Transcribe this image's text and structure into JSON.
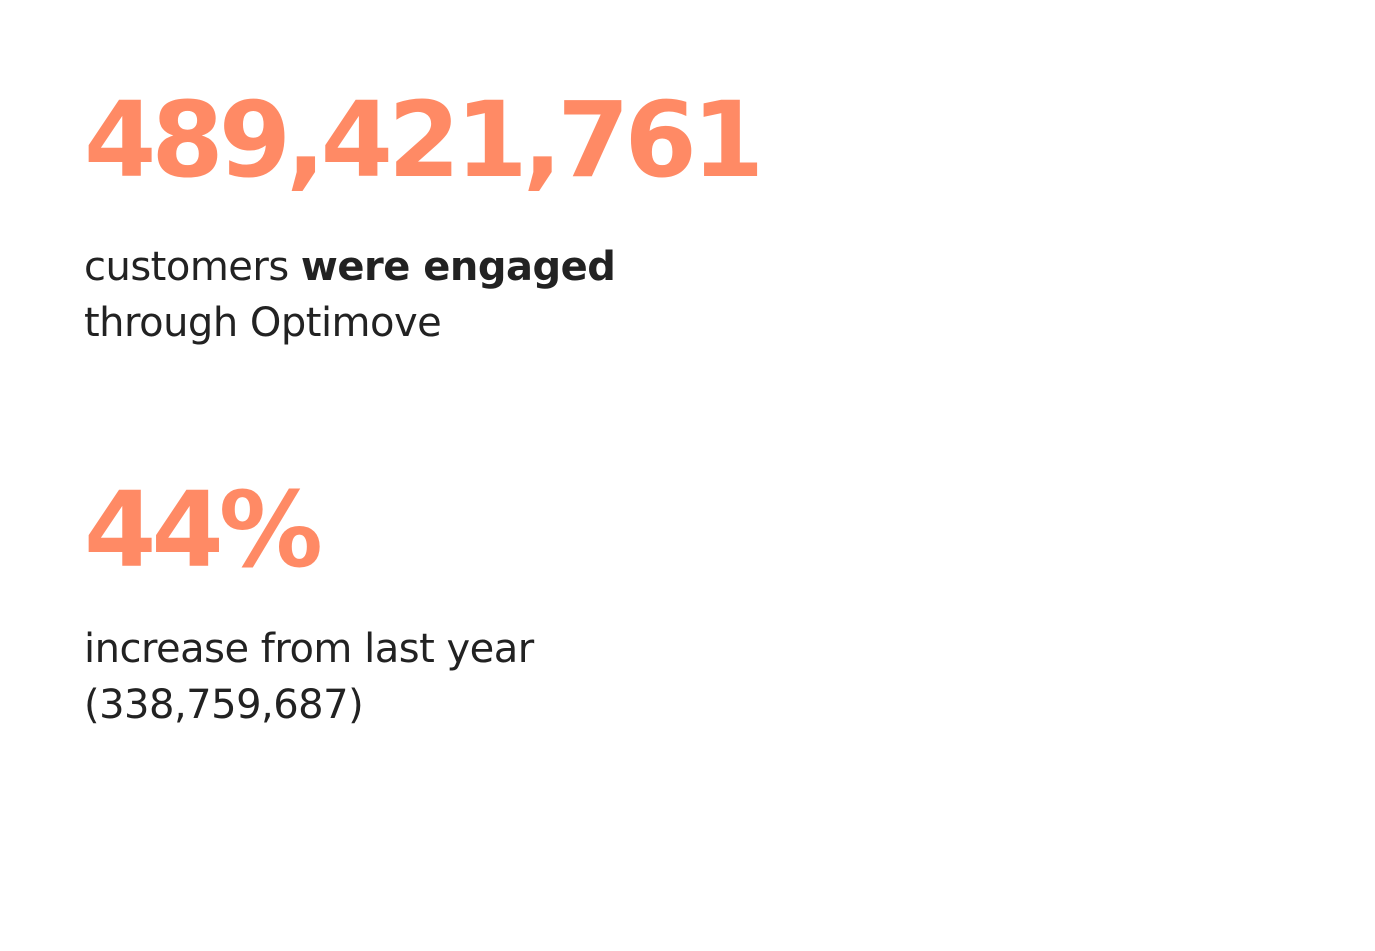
{
  "colors": {
    "accent": "#FF8A65",
    "text": "#222222",
    "background": "#FFFFFF"
  },
  "stats": [
    {
      "value": "489,421,761",
      "line1_plain": "customers ",
      "line1_bold": "were engaged",
      "line2": "through Optimove"
    },
    {
      "value": "44%",
      "line1": "increase from last year",
      "line2": "(338,759,687)"
    }
  ]
}
